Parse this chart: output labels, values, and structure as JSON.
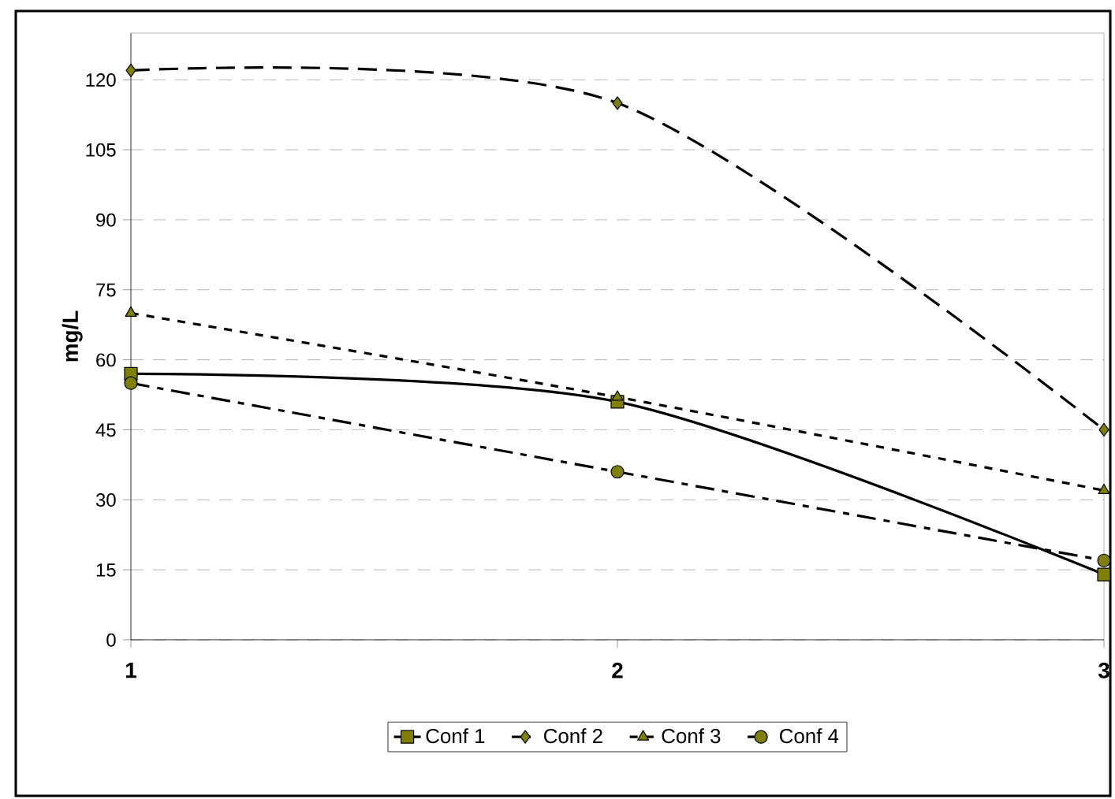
{
  "chart_data": {
    "type": "line",
    "ylabel": "mg/L",
    "categories": [
      "1",
      "2",
      "3"
    ],
    "ylim": [
      0,
      130
    ],
    "yticks": [
      0,
      15,
      30,
      45,
      60,
      75,
      90,
      105,
      120
    ],
    "grid": "y",
    "legend": "bottom",
    "series": [
      {
        "name": "Conf 1",
        "color": "#000000",
        "values": [
          57,
          51,
          14
        ],
        "marker": "square",
        "line_style": "solid"
      },
      {
        "name": "Conf 2",
        "color": "#000000",
        "values": [
          122,
          115,
          45
        ],
        "marker": "diamond",
        "line_style": "dashed"
      },
      {
        "name": "Conf 3",
        "color": "#000000",
        "values": [
          70,
          52,
          32
        ],
        "marker": "triangle",
        "line_style": "dotted"
      },
      {
        "name": "Conf 4",
        "color": "#000000",
        "values": [
          55,
          36,
          17
        ],
        "marker": "circle",
        "line_style": "dashdot"
      }
    ]
  }
}
